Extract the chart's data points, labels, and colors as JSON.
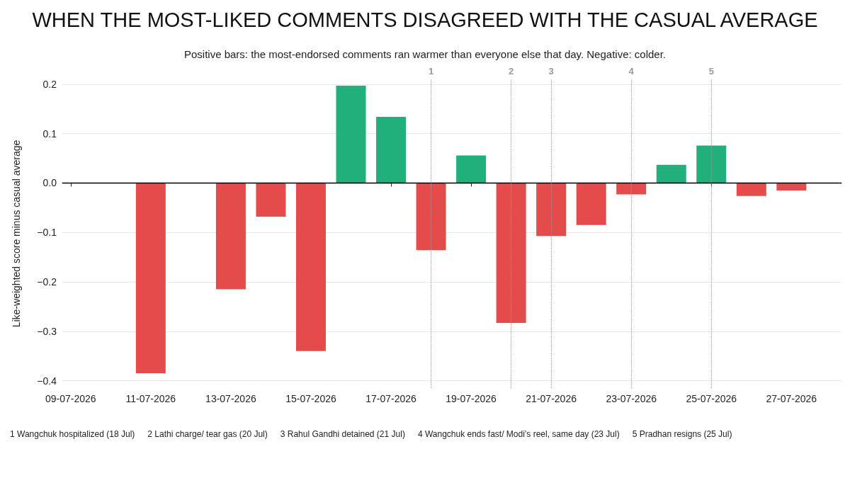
{
  "chart_data": {
    "type": "bar",
    "title": "WHEN THE MOST-LIKED COMMENTS DISAGREED WITH THE CASUAL AVERAGE",
    "subtitle": "Positive bars: the most-endorsed comments ran warmer than everyone else that day. Negative: colder.",
    "ylabel": "Like-weighted score minus casual average",
    "x": [
      "2026-07-11",
      "2026-07-13",
      "2026-07-14",
      "2026-07-15",
      "2026-07-16",
      "2026-07-17",
      "2026-07-18",
      "2026-07-19",
      "2026-07-20",
      "2026-07-21",
      "2026-07-22",
      "2026-07-23",
      "2026-07-24",
      "2026-07-25",
      "2026-07-26",
      "2026-07-27"
    ],
    "values": [
      -0.385,
      -0.215,
      -0.068,
      -0.34,
      0.197,
      0.134,
      -0.136,
      0.056,
      -0.283,
      -0.107,
      -0.085,
      -0.023,
      0.037,
      0.076,
      -0.026,
      -0.015
    ],
    "colors": [
      "#e34c4a",
      "#e34c4a",
      "#e34c4a",
      "#e34c4a",
      "#21b07c",
      "#21b07c",
      "#e34c4a",
      "#21b07c",
      "#e34c4a",
      "#e34c4a",
      "#e34c4a",
      "#e34c4a",
      "#21b07c",
      "#21b07c",
      "#e34c4a",
      "#e34c4a"
    ],
    "xlim": [
      "2026-07-08T19:00",
      "2026-07-28T06:00"
    ],
    "xticks": [
      {
        "value": "2026-07-09",
        "label": "09-07-2026"
      },
      {
        "value": "2026-07-11",
        "label": "11-07-2026"
      },
      {
        "value": "2026-07-13",
        "label": "13-07-2026"
      },
      {
        "value": "2026-07-15",
        "label": "15-07-2026"
      },
      {
        "value": "2026-07-17",
        "label": "17-07-2026"
      },
      {
        "value": "2026-07-19",
        "label": "19-07-2026"
      },
      {
        "value": "2026-07-21",
        "label": "21-07-2026"
      },
      {
        "value": "2026-07-23",
        "label": "23-07-2026"
      },
      {
        "value": "2026-07-25",
        "label": "25-07-2026"
      },
      {
        "value": "2026-07-27",
        "label": "27-07-2026"
      }
    ],
    "ylim": [
      -0.415,
      0.21
    ],
    "yticks": [
      {
        "value": -0.4,
        "label": "−0.4"
      },
      {
        "value": -0.3,
        "label": "−0.3"
      },
      {
        "value": -0.2,
        "label": "−0.2"
      },
      {
        "value": -0.1,
        "label": "−0.1"
      },
      {
        "value": 0,
        "label": "0.0"
      },
      {
        "value": 0.1,
        "label": "0.1"
      },
      {
        "value": 0.2,
        "label": "0.2"
      }
    ],
    "grid": "y",
    "ref_lines": [
      {
        "axis": "y",
        "value": 0,
        "color": "#000000",
        "line_style": "solid"
      },
      {
        "axis": "x",
        "value": "2026-07-18",
        "label": "1",
        "color": "#999999",
        "line_style": "dotted"
      },
      {
        "axis": "x",
        "value": "2026-07-20",
        "label": "2",
        "color": "#999999",
        "line_style": "dotted"
      },
      {
        "axis": "x",
        "value": "2026-07-21",
        "label": "3",
        "color": "#999999",
        "line_style": "dotted"
      },
      {
        "axis": "x",
        "value": "2026-07-23",
        "label": "4",
        "color": "#999999",
        "line_style": "dotted"
      },
      {
        "axis": "x",
        "value": "2026-07-25",
        "label": "5",
        "color": "#999999",
        "line_style": "dotted"
      }
    ],
    "annotations": [
      "1 Wangchuk hospitalized (18 Jul)",
      "2 Lathi charge/ tear gas (20 Jul)",
      "3 Rahul Gandhi detained (21 Jul)",
      "4 Wangchuk ends fast/ Modi’s reel, same day (23 Jul)",
      "5 Pradhan resigns (25 Jul)"
    ]
  }
}
